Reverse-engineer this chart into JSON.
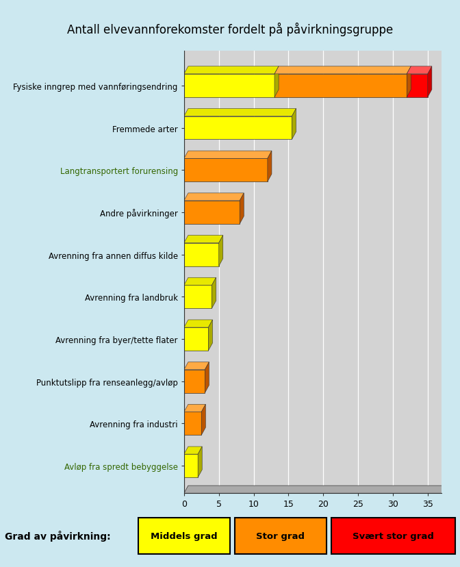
{
  "title": "Antall elvevannforekomster fordelt på påvirkningsgruppe",
  "background_color": "#cce8f0",
  "plot_bg_color": "#d3d3d3",
  "categories": [
    "Fysiske inngrep med vannføringsendring",
    "Fremmede arter",
    "Langtransportert forurensing",
    "Andre påvirkninger",
    "Avrenning fra annen diffus kilde",
    "Avrenning fra landbruk",
    "Avrenning fra byer/tette flater",
    "Punktutslipp fra renseanlegg/avløp",
    "Avrenning fra industri",
    "Avløp fra spredt bebyggelse"
  ],
  "label_colors": [
    "#000000",
    "#000000",
    "#336600",
    "#000000",
    "#000000",
    "#000000",
    "#000000",
    "#000000",
    "#000000",
    "#336600"
  ],
  "middels": [
    13.0,
    15.5,
    0.0,
    0.0,
    5.0,
    4.0,
    3.5,
    0.0,
    0.0,
    2.0
  ],
  "stor": [
    19.0,
    0.0,
    12.0,
    8.0,
    0.0,
    0.0,
    0.0,
    3.0,
    2.5,
    0.0
  ],
  "svaert": [
    3.0,
    0.0,
    0.0,
    0.0,
    0.0,
    0.0,
    0.0,
    0.0,
    0.0,
    0.0
  ],
  "middels_color": "#ffff00",
  "middels_top_color": "#e8e800",
  "middels_side_color": "#aaaa00",
  "stor_color": "#ff8c00",
  "stor_top_color": "#ffaa44",
  "stor_side_color": "#bb5500",
  "svaert_color": "#ff0000",
  "svaert_top_color": "#ff5555",
  "svaert_side_color": "#cc0000",
  "xlim": [
    0,
    37
  ],
  "xticks": [
    0,
    5,
    10,
    15,
    20,
    25,
    30,
    35
  ],
  "legend_label_middels": "Middels grad",
  "legend_label_stor": "Stor grad",
  "legend_label_svaert": "Svært stor grad",
  "legend_title": "Grad av påvirkning:",
  "title_fontsize": 12,
  "axis_label_fontsize": 8.5
}
